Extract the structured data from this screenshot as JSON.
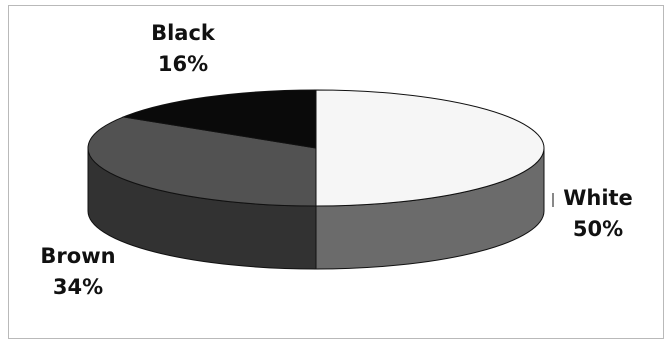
{
  "chart_data": {
    "type": "pie",
    "style": "3d",
    "title": "",
    "slices": [
      {
        "label": "White",
        "value": 50,
        "value_label": "50%",
        "top_color": "#f6f6f6",
        "side_color": "#6b6b6b"
      },
      {
        "label": "Brown",
        "value": 34,
        "value_label": "34%",
        "top_color": "#525252",
        "side_color": "#323232"
      },
      {
        "label": "Black",
        "value": 16,
        "value_label": "16%",
        "top_color": "#0a0a0a",
        "side_color": "#050505"
      }
    ],
    "legend": "none"
  }
}
